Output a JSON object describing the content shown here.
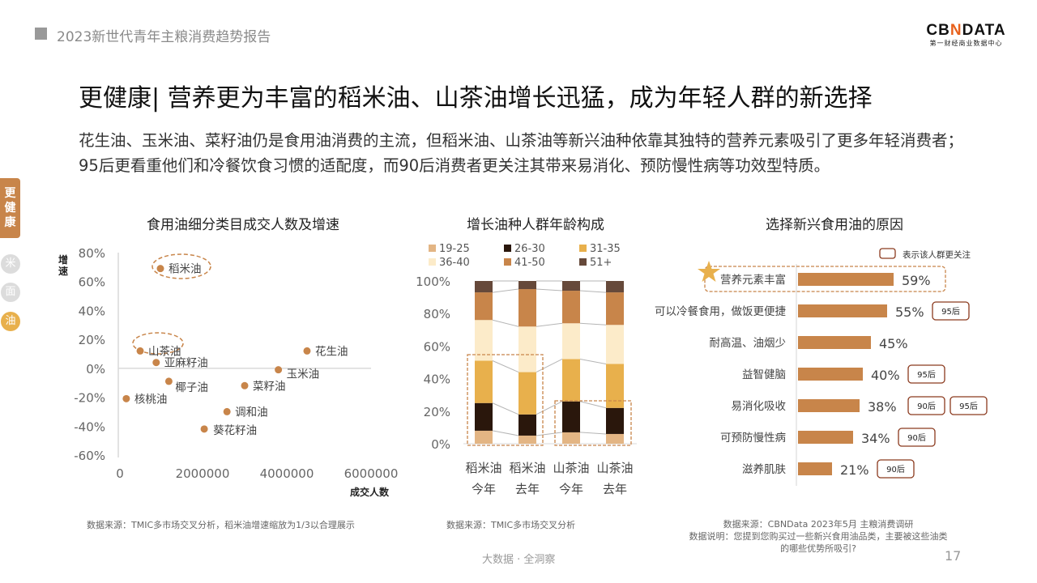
{
  "header": {
    "report_title": "2023新世代青年主粮消费趋势报告"
  },
  "logo": {
    "name_prefix": "CB",
    "name_n": "N",
    "name_suffix": "DATA",
    "tagline": "第一财经商业数据中心"
  },
  "title": "更健康| 营养更为丰富的稻米油、山茶油增长迅猛，成为年轻人群的新选择",
  "paragraph": "花生油、玉米油、菜籽油仍是食用油消费的主流，但稻米油、山茶油等新兴油种依靠其独特的营养元素吸引了更多年轻消费者；95后更看重他们和冷餐饮食习惯的适配度，而90后消费者更关注其带来易消化、预防慢性病等功效型特质。",
  "sidebar": {
    "active_tab": "更健康",
    "items": [
      {
        "label": "米",
        "color": "#dcdcdc"
      },
      {
        "label": "面",
        "color": "#dcdcdc"
      },
      {
        "label": "油",
        "color": "#e8b04c"
      }
    ]
  },
  "colors": {
    "accent": "#c8854a",
    "tag_border": "#8b3a1e",
    "star": "#e8b04c"
  },
  "chart_data": [
    {
      "type": "scatter",
      "title": "食用油细分类目成交人数及增速",
      "xlabel": "成交人数",
      "ylabel": "增速",
      "xlim": [
        0,
        6000000
      ],
      "ylim": [
        -60,
        80
      ],
      "xticks": [
        "0",
        "2000000",
        "4000000",
        "6000000"
      ],
      "yticks": [
        "80%",
        "60%",
        "40%",
        "20%",
        "0%",
        "-20%",
        "-40%",
        "-60%"
      ],
      "points": [
        {
          "label": "稻米油",
          "x": 1000000,
          "y": 69,
          "highlight": true
        },
        {
          "label": "山茶油",
          "x": 520000,
          "y": 12,
          "highlight": true
        },
        {
          "label": "亚麻籽油",
          "x": 900000,
          "y": 4
        },
        {
          "label": "椰子油",
          "x": 1200000,
          "y": -9
        },
        {
          "label": "核桃油",
          "x": 190000,
          "y": -21
        },
        {
          "label": "葵花籽油",
          "x": 2040000,
          "y": -42
        },
        {
          "label": "调和油",
          "x": 2580000,
          "y": -30
        },
        {
          "label": "菜籽油",
          "x": 3000000,
          "y": -12
        },
        {
          "label": "玉米油",
          "x": 3800000,
          "y": -1
        },
        {
          "label": "花生油",
          "x": 4480000,
          "y": 12
        }
      ],
      "note": "数据来源：TMIC多市场交叉分析，稻米油增速缩放为1/3以合理展示"
    },
    {
      "type": "bar",
      "stacked": true,
      "title": "增长油种人群年龄构成",
      "categories": [
        [
          "稻米油",
          "今年"
        ],
        [
          "稻米油",
          "去年"
        ],
        [
          "山茶油",
          "今年"
        ],
        [
          "山茶油",
          "去年"
        ]
      ],
      "ylim": [
        0,
        100
      ],
      "yticks": [
        "0%",
        "20%",
        "40%",
        "60%",
        "80%",
        "100%"
      ],
      "series": [
        {
          "name": "19-25",
          "color": "#e3b584",
          "values": [
            8,
            5,
            7,
            6
          ]
        },
        {
          "name": "26-30",
          "color": "#2a170c",
          "values": [
            17,
            13,
            19,
            16
          ]
        },
        {
          "name": "31-35",
          "color": "#e8b04c",
          "values": [
            26,
            26,
            26,
            27
          ]
        },
        {
          "name": "36-40",
          "color": "#fcebc9",
          "values": [
            25,
            28,
            22,
            24
          ]
        },
        {
          "name": "41-50",
          "color": "#c8854a",
          "values": [
            17,
            23,
            20,
            20
          ]
        },
        {
          "name": "51+",
          "color": "#66493a",
          "values": [
            7,
            5,
            6,
            7
          ]
        }
      ],
      "note": "数据来源：TMIC多市场交叉分析"
    },
    {
      "type": "bar",
      "orientation": "horizontal",
      "title": "选择新兴食用油的原因",
      "legend": "表示该人群更关注",
      "items": [
        {
          "label": "营养元素丰富",
          "value": 59,
          "tags": [],
          "highlight": true
        },
        {
          "label": "可以冷餐食用，做饭更便捷",
          "value": 55,
          "tags": [
            "95后"
          ]
        },
        {
          "label": "耐高温、油烟少",
          "value": 45,
          "tags": []
        },
        {
          "label": "益智健脑",
          "value": 40,
          "tags": [
            "95后"
          ]
        },
        {
          "label": "易消化吸收",
          "value": 38,
          "tags": [
            "90后",
            "95后"
          ]
        },
        {
          "label": "可预防慢性病",
          "value": 34,
          "tags": [
            "90后"
          ]
        },
        {
          "label": "滋养肌肤",
          "value": 21,
          "tags": [
            "90后"
          ]
        }
      ],
      "note1": "数据来源：CBNData 2023年5月 主粮消费调研",
      "note2": "数据说明：您提到您购买过一些新兴食用油品类，主要被这些油类",
      "note3": "的哪些优势所吸引?"
    }
  ],
  "footer": {
    "slogan": "大数据 · 全洞察",
    "page": "17"
  }
}
